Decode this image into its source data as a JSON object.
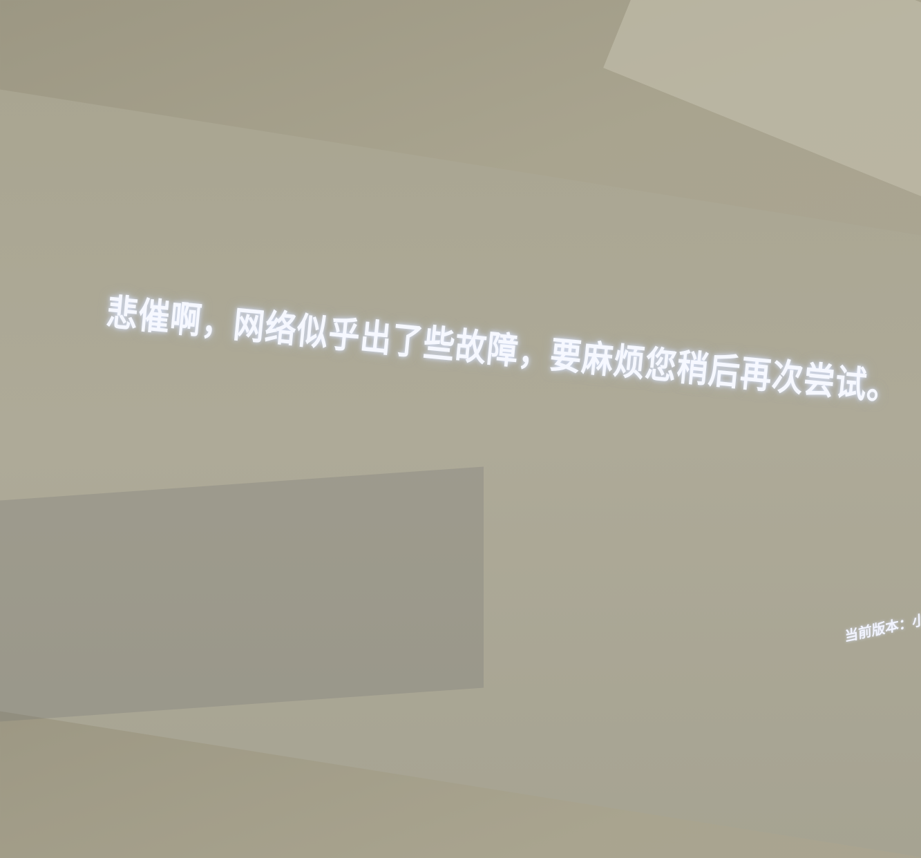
{
  "message": "悲催啊，网络似乎出了些故障，要麻烦您稍后再次尝试。",
  "footer": {
    "version": "当前版本：小米盒"
  }
}
